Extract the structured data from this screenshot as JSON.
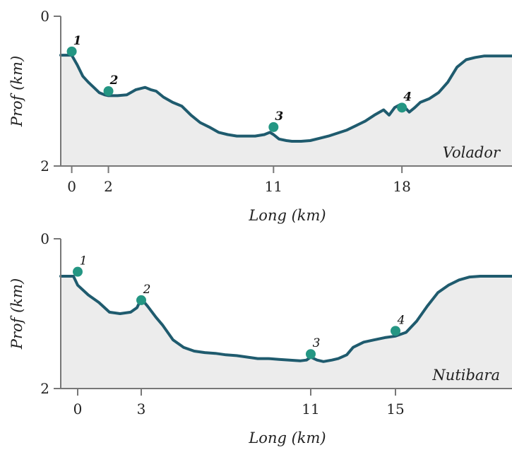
{
  "colors": {
    "line": "#1f5b6e",
    "fill": "#ececec",
    "marker": "#249683",
    "axis": "#777777"
  },
  "chart_data": [
    {
      "type": "area",
      "panel_name": "Volador",
      "xlabel": "Long (km)",
      "ylabel": "Prof (km)",
      "ylim": [
        0,
        2
      ],
      "y_inverted": true,
      "y_ticks": [
        "0",
        "2"
      ],
      "xlim": [
        -0.6,
        24
      ],
      "x_ticks": [
        "0",
        "2",
        "11",
        "18"
      ],
      "x_tick_values": [
        0,
        2,
        11,
        18
      ],
      "point_label_style": "bold",
      "profile": {
        "x": [
          -0.6,
          0.0,
          0.3,
          0.6,
          0.9,
          1.2,
          1.5,
          1.8,
          2.0,
          2.5,
          3.0,
          3.5,
          4.0,
          4.3,
          4.6,
          5.0,
          5.5,
          6.0,
          6.5,
          7.0,
          7.5,
          8.0,
          8.5,
          9.0,
          9.5,
          10.0,
          10.5,
          10.8,
          11.0,
          11.3,
          11.7,
          12.0,
          12.5,
          13.0,
          13.5,
          14.0,
          14.5,
          15.0,
          15.5,
          16.0,
          16.5,
          17.0,
          17.3,
          17.6,
          17.9,
          18.1,
          18.4,
          18.7,
          19.0,
          19.5,
          20.0,
          20.5,
          21.0,
          21.5,
          22.0,
          22.5,
          24.0
        ],
        "y": [
          0.52,
          0.52,
          0.65,
          0.8,
          0.88,
          0.95,
          1.02,
          1.05,
          1.06,
          1.06,
          1.05,
          0.98,
          0.95,
          0.98,
          1.0,
          1.08,
          1.15,
          1.2,
          1.32,
          1.42,
          1.48,
          1.55,
          1.58,
          1.6,
          1.6,
          1.6,
          1.58,
          1.55,
          1.58,
          1.64,
          1.66,
          1.67,
          1.67,
          1.66,
          1.63,
          1.6,
          1.56,
          1.52,
          1.46,
          1.4,
          1.32,
          1.25,
          1.32,
          1.22,
          1.18,
          1.2,
          1.28,
          1.22,
          1.15,
          1.1,
          1.02,
          0.88,
          0.68,
          0.58,
          0.55,
          0.53,
          0.53
        ]
      },
      "points": [
        {
          "label": "1",
          "x": 0.0,
          "y": 0.47
        },
        {
          "label": "2",
          "x": 2.0,
          "y": 1.0
        },
        {
          "label": "3",
          "x": 11.0,
          "y": 1.48
        },
        {
          "label": "4",
          "x": 18.0,
          "y": 1.22
        }
      ]
    },
    {
      "type": "area",
      "panel_name": "Nutibara",
      "xlabel": "Long (km)",
      "ylabel": "Prof (km)",
      "ylim": [
        0,
        2
      ],
      "y_inverted": true,
      "y_ticks": [
        "0",
        "2"
      ],
      "xlim": [
        -0.8,
        20.5
      ],
      "x_ticks": [
        "0",
        "3",
        "11",
        "15"
      ],
      "x_tick_values": [
        0,
        3,
        11,
        15
      ],
      "point_label_style": "italic",
      "profile": {
        "x": [
          -0.8,
          -0.2,
          0.0,
          0.5,
          1.0,
          1.5,
          2.0,
          2.5,
          2.8,
          3.0,
          3.3,
          3.7,
          4.0,
          4.5,
          5.0,
          5.5,
          6.0,
          6.5,
          7.0,
          7.5,
          8.0,
          8.5,
          9.0,
          9.5,
          10.0,
          10.5,
          10.8,
          11.0,
          11.3,
          11.6,
          12.0,
          12.3,
          12.7,
          13.0,
          13.5,
          14.0,
          14.5,
          15.0,
          15.5,
          16.0,
          16.5,
          17.0,
          17.5,
          18.0,
          18.5,
          19.0,
          20.5
        ],
        "y": [
          0.5,
          0.5,
          0.62,
          0.75,
          0.85,
          0.98,
          1.0,
          0.98,
          0.92,
          0.8,
          0.9,
          1.05,
          1.15,
          1.35,
          1.45,
          1.5,
          1.52,
          1.53,
          1.55,
          1.56,
          1.58,
          1.6,
          1.6,
          1.61,
          1.62,
          1.63,
          1.62,
          1.58,
          1.62,
          1.64,
          1.62,
          1.6,
          1.55,
          1.45,
          1.38,
          1.35,
          1.32,
          1.3,
          1.25,
          1.1,
          0.9,
          0.72,
          0.62,
          0.55,
          0.51,
          0.5,
          0.5
        ]
      },
      "points": [
        {
          "label": "1",
          "x": 0.0,
          "y": 0.44
        },
        {
          "label": "2",
          "x": 3.0,
          "y": 0.82
        },
        {
          "label": "3",
          "x": 11.0,
          "y": 1.54
        },
        {
          "label": "4",
          "x": 15.0,
          "y": 1.23
        }
      ]
    }
  ]
}
